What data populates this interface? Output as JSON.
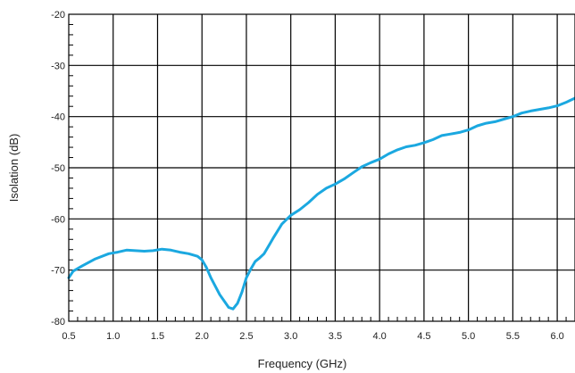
{
  "chart_data": {
    "type": "line",
    "title": "",
    "xlabel": "Frequency (GHz)",
    "ylabel": "Isolation (dB)",
    "xlim": [
      0.5,
      6.2
    ],
    "ylim": [
      -80,
      -20
    ],
    "x_ticks": [
      "0.5",
      "1.0",
      "1.5",
      "2.0",
      "2.5",
      "3.0",
      "3.5",
      "4.0",
      "4.5",
      "5.0",
      "5.5",
      "6.0"
    ],
    "y_ticks": [
      "-20",
      "-30",
      "-40",
      "-50",
      "-60",
      "-70",
      "-80"
    ],
    "grid": true,
    "line_color": "#1ba8e0",
    "series": [
      {
        "x": [
          0.5,
          0.55,
          0.65,
          0.8,
          0.95,
          1.05,
          1.15,
          1.25,
          1.35,
          1.45,
          1.55,
          1.65,
          1.75,
          1.85,
          1.95,
          2.0,
          2.05,
          2.1,
          2.2,
          2.3,
          2.35,
          2.4,
          2.45,
          2.5,
          2.55,
          2.6,
          2.65,
          2.7,
          2.75,
          2.8,
          2.9,
          3.0,
          3.1,
          3.2,
          3.3,
          3.4,
          3.5,
          3.6,
          3.7,
          3.8,
          3.9,
          4.0,
          4.1,
          4.2,
          4.3,
          4.4,
          4.5,
          4.6,
          4.7,
          4.8,
          4.9,
          5.0,
          5.1,
          5.2,
          5.3,
          5.4,
          5.5,
          5.6,
          5.7,
          5.8,
          5.9,
          6.0,
          6.1,
          6.2
        ],
        "y": [
          -71.5,
          -70.2,
          -69.2,
          -67.8,
          -66.8,
          -66.5,
          -66.1,
          -66.2,
          -66.3,
          -66.2,
          -65.9,
          -66.1,
          -66.5,
          -66.8,
          -67.3,
          -68.0,
          -69.5,
          -71.5,
          -74.8,
          -77.3,
          -77.6,
          -76.5,
          -74.3,
          -71.5,
          -69.8,
          -68.3,
          -67.6,
          -66.8,
          -65.3,
          -63.8,
          -61.0,
          -59.3,
          -58.2,
          -56.8,
          -55.2,
          -54.0,
          -53.2,
          -52.2,
          -51.0,
          -49.8,
          -49.0,
          -48.3,
          -47.3,
          -46.5,
          -45.9,
          -45.6,
          -45.1,
          -44.5,
          -43.7,
          -43.4,
          -43.1,
          -42.6,
          -41.8,
          -41.3,
          -41.0,
          -40.5,
          -40.0,
          -39.3,
          -38.9,
          -38.6,
          -38.3,
          -37.9,
          -37.2,
          -36.4
        ]
      }
    ]
  }
}
